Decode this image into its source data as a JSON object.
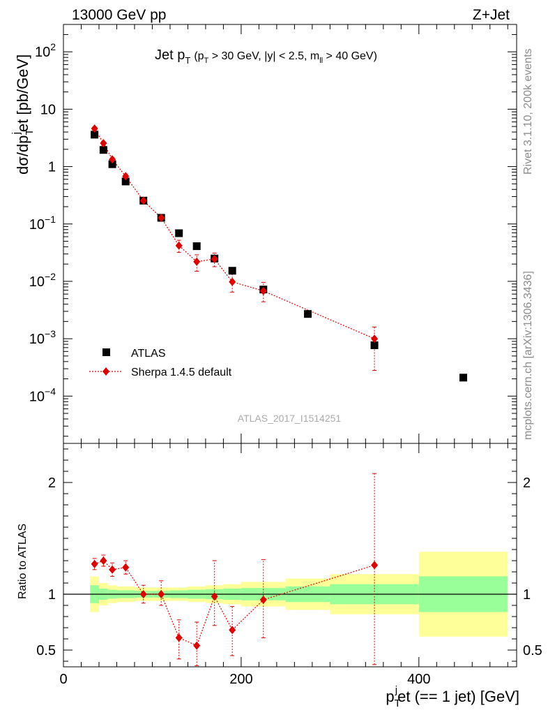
{
  "header": {
    "left": "13000 GeV pp",
    "right": "Z+Jet"
  },
  "side_labels": {
    "rivet": "Rivet 3.1.10,  200k events",
    "mcplots": "mcplots.cern.ch [arXiv:1306.3436]"
  },
  "chart_data": [
    {
      "type": "scatter",
      "panel": "main",
      "title": "Jet pT (pT > 30 GeV, |y| < 2.5, mll > 40 GeV)",
      "title_parts": {
        "main": "Jet p",
        "main_sub": "T",
        "paren_open": "(p",
        "pt_sub": "T",
        "cuts": " > 30 GeV, |y| < 2.5, m",
        "ll_sub": "ll",
        "close": " > 40 GeV)"
      },
      "ylabel": "dσ/dp_T^j et [pb/GeV]",
      "ylabel_parts": {
        "a": "dσ/dp",
        "sub": "T",
        "sup": "j",
        "b": "et [pb/GeV]"
      },
      "yscale": "log",
      "xlim": [
        0,
        510
      ],
      "ylim": [
        1.5e-05,
        300
      ],
      "y_ticks": [
        {
          "v": 0.0001,
          "base": "10",
          "exp": "−4"
        },
        {
          "v": 0.001,
          "base": "10",
          "exp": "−3"
        },
        {
          "v": 0.01,
          "base": "10",
          "exp": "−2"
        },
        {
          "v": 0.1,
          "base": "10",
          "exp": "−1"
        },
        {
          "v": 1,
          "base": "1",
          "exp": ""
        },
        {
          "v": 10,
          "base": "10",
          "exp": ""
        },
        {
          "v": 100,
          "base": "10",
          "exp": "2"
        }
      ],
      "watermark": "ATLAS_2017_I1514251",
      "legend_position": "bottom-left",
      "series": [
        {
          "name": "ATLAS",
          "color": "#000000",
          "marker": "square",
          "x": [
            35,
            45,
            55,
            70,
            90,
            110,
            130,
            150,
            170,
            190,
            225,
            275,
            350,
            450
          ],
          "y": [
            3.6,
            1.95,
            1.1,
            0.55,
            0.255,
            0.128,
            0.069,
            0.041,
            0.025,
            0.0153,
            0.0072,
            0.0027,
            0.00077,
            0.00021
          ]
        },
        {
          "name": "Sherpa 1.4.5 default",
          "color": "#e00000",
          "marker": "diamond",
          "line": "dotted",
          "x": [
            35,
            45,
            55,
            70,
            90,
            110,
            130,
            150,
            170,
            190,
            225,
            350
          ],
          "y": [
            4.6,
            2.55,
            1.33,
            0.68,
            0.255,
            0.128,
            0.042,
            0.022,
            0.0245,
            0.0098,
            0.0068,
            0.001
          ],
          "y_low": [
            4.3,
            2.35,
            1.23,
            0.62,
            0.235,
            0.115,
            0.032,
            0.015,
            0.018,
            0.0065,
            0.0044,
            0.00028
          ],
          "y_high": [
            4.9,
            2.75,
            1.43,
            0.74,
            0.275,
            0.141,
            0.052,
            0.029,
            0.031,
            0.0135,
            0.0096,
            0.0016
          ]
        }
      ]
    },
    {
      "type": "scatter",
      "panel": "ratio",
      "ylabel": "Ratio to ATLAS",
      "xlabel": "p_T^j et (== 1 jet) [GeV]",
      "xlabel_parts": {
        "a": "p",
        "sub": "T",
        "sup": "j",
        "b": "et (== 1 jet) [GeV]"
      },
      "xlim": [
        0,
        510
      ],
      "ylim": [
        0.35,
        2.35
      ],
      "x_ticks": [
        0,
        200,
        400
      ],
      "y_ticks": [
        0.5,
        1,
        2
      ],
      "reference_line": 1,
      "band_colors": {
        "inner": "#99ff99",
        "outer": "#ffff99"
      },
      "bands": [
        {
          "x0": 30,
          "x1": 40,
          "lo_outer": 0.84,
          "hi_outer": 1.16,
          "lo_inner": 0.92,
          "hi_inner": 1.08
        },
        {
          "x0": 40,
          "x1": 50,
          "lo_outer": 0.9,
          "hi_outer": 1.1,
          "lo_inner": 0.95,
          "hi_inner": 1.05
        },
        {
          "x0": 50,
          "x1": 60,
          "lo_outer": 0.92,
          "hi_outer": 1.08,
          "lo_inner": 0.96,
          "hi_inner": 1.04
        },
        {
          "x0": 60,
          "x1": 80,
          "lo_outer": 0.93,
          "hi_outer": 1.07,
          "lo_inner": 0.965,
          "hi_inner": 1.035
        },
        {
          "x0": 80,
          "x1": 100,
          "lo_outer": 0.94,
          "hi_outer": 1.06,
          "lo_inner": 0.97,
          "hi_inner": 1.03
        },
        {
          "x0": 100,
          "x1": 120,
          "lo_outer": 0.94,
          "hi_outer": 1.06,
          "lo_inner": 0.97,
          "hi_inner": 1.03
        },
        {
          "x0": 120,
          "x1": 140,
          "lo_outer": 0.94,
          "hi_outer": 1.06,
          "lo_inner": 0.965,
          "hi_inner": 1.035
        },
        {
          "x0": 140,
          "x1": 160,
          "lo_outer": 0.93,
          "hi_outer": 1.07,
          "lo_inner": 0.96,
          "hi_inner": 1.04
        },
        {
          "x0": 160,
          "x1": 180,
          "lo_outer": 0.92,
          "hi_outer": 1.08,
          "lo_inner": 0.955,
          "hi_inner": 1.045
        },
        {
          "x0": 180,
          "x1": 200,
          "lo_outer": 0.91,
          "hi_outer": 1.09,
          "lo_inner": 0.95,
          "hi_inner": 1.05
        },
        {
          "x0": 200,
          "x1": 250,
          "lo_outer": 0.89,
          "hi_outer": 1.11,
          "lo_inner": 0.945,
          "hi_inner": 1.055
        },
        {
          "x0": 250,
          "x1": 300,
          "lo_outer": 0.86,
          "hi_outer": 1.14,
          "lo_inner": 0.93,
          "hi_inner": 1.07
        },
        {
          "x0": 300,
          "x1": 400,
          "lo_outer": 0.82,
          "hi_outer": 1.18,
          "lo_inner": 0.91,
          "hi_inner": 1.09
        },
        {
          "x0": 400,
          "x1": 500,
          "lo_outer": 0.62,
          "hi_outer": 1.38,
          "lo_inner": 0.84,
          "hi_inner": 1.16
        }
      ],
      "series": [
        {
          "name": "Sherpa 1.4.5 default",
          "color": "#e00000",
          "marker": "diamond",
          "line": "dotted",
          "x": [
            35,
            45,
            55,
            70,
            90,
            110,
            130,
            150,
            170,
            190,
            225,
            350
          ],
          "y": [
            1.27,
            1.3,
            1.22,
            1.24,
            1.0,
            1.0,
            0.61,
            0.54,
            0.98,
            0.68,
            0.95,
            1.26
          ],
          "y_low": [
            1.22,
            1.25,
            1.16,
            1.18,
            0.92,
            0.9,
            0.42,
            0.36,
            0.72,
            0.45,
            0.61,
            0.37
          ],
          "y_high": [
            1.32,
            1.35,
            1.28,
            1.3,
            1.08,
            1.12,
            0.77,
            0.75,
            1.3,
            0.89,
            1.31,
            2.08
          ]
        }
      ]
    }
  ]
}
